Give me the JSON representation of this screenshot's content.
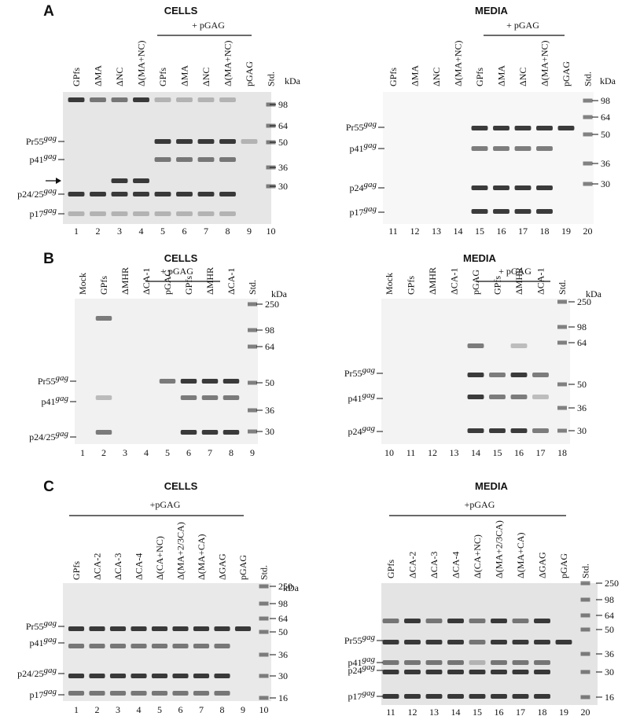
{
  "panels": [
    {
      "letter": "A",
      "cells": {
        "title": "CELLS",
        "treatment": "+ pGAG",
        "lanes": [
          "GPfs",
          "ΔMA",
          "ΔNC",
          "Δ(MA+NC)",
          "GPfs",
          "ΔMA",
          "ΔNC",
          "Δ(MA+NC)",
          "pGAG",
          "Std."
        ],
        "lane_numbers": [
          1,
          2,
          3,
          4,
          5,
          6,
          7,
          8,
          9,
          10
        ],
        "bands": [
          {
            "name": "Pr55",
            "sup": "gag"
          },
          {
            "name": "p41",
            "sup": "gag"
          },
          {
            "name": "p24/25",
            "sup": "gag"
          },
          {
            "name": "p17",
            "sup": "gag"
          }
        ],
        "markers": [
          98,
          64,
          50,
          36,
          30
        ],
        "unit": "kDa"
      },
      "media": {
        "title": "MEDIA",
        "treatment": "+ pGAG",
        "lanes": [
          "GPfs",
          "ΔMA",
          "ΔNC",
          "Δ(MA+NC)",
          "GPfs",
          "ΔMA",
          "ΔNC",
          "Δ(MA+NC)",
          "pGAG",
          "Std."
        ],
        "lane_numbers": [
          11,
          12,
          13,
          14,
          15,
          16,
          17,
          18,
          19,
          20
        ],
        "bands": [
          {
            "name": "Pr55",
            "sup": "gag"
          },
          {
            "name": "p41",
            "sup": "gag"
          },
          {
            "name": "p24",
            "sup": "gag"
          },
          {
            "name": "p17",
            "sup": "gag"
          }
        ],
        "markers": [
          98,
          64,
          50,
          36,
          30
        ],
        "unit": "kDa"
      }
    },
    {
      "letter": "B",
      "cells": {
        "title": "CELLS",
        "treatment": "+ pGAG",
        "lanes": [
          "Mock",
          "GPfs",
          "ΔMHR",
          "ΔCA-1",
          "pGAG",
          "GPfs",
          "ΔMHR",
          "ΔCA-1",
          "Std."
        ],
        "lane_numbers": [
          1,
          2,
          3,
          4,
          5,
          6,
          7,
          8,
          9
        ],
        "bands": [
          {
            "name": "Pr55",
            "sup": "gag"
          },
          {
            "name": "p41",
            "sup": "gag"
          },
          {
            "name": "p24/25",
            "sup": "gag"
          }
        ],
        "markers": [
          250,
          98,
          64,
          50,
          36,
          30
        ],
        "unit": "kDa"
      },
      "media": {
        "title": "MEDIA",
        "treatment": "+ pGAG",
        "lanes": [
          "Mock",
          "GPfs",
          "ΔMHR",
          "ΔCA-1",
          "pGAG",
          "GPfs",
          "ΔMHR",
          "ΔCA-1",
          "Std."
        ],
        "lane_numbers": [
          10,
          11,
          12,
          13,
          14,
          15,
          16,
          17,
          18
        ],
        "bands": [
          {
            "name": "Pr55",
            "sup": "gag"
          },
          {
            "name": "p41",
            "sup": "gag"
          },
          {
            "name": "p24",
            "sup": "gag"
          }
        ],
        "markers": [
          250,
          98,
          64,
          50,
          36,
          30
        ],
        "unit": "kDa"
      }
    },
    {
      "letter": "C",
      "cells": {
        "title": "CELLS",
        "treatment": "+pGAG",
        "lanes": [
          "GPfs",
          "ΔCA-2",
          "ΔCA-3",
          "ΔCA-4",
          "Δ(CA+NC)",
          "Δ(MA+2/3CA)",
          "Δ(MA+CA)",
          "ΔGAG",
          "pGAG",
          "Std."
        ],
        "lane_numbers": [
          1,
          2,
          3,
          4,
          5,
          6,
          7,
          8,
          9,
          10
        ],
        "bands": [
          {
            "name": "Pr55",
            "sup": "gag"
          },
          {
            "name": "p41",
            "sup": "gag"
          },
          {
            "name": "p24/25",
            "sup": "gag"
          },
          {
            "name": "p17",
            "sup": "gag"
          }
        ],
        "markers": [
          250,
          98,
          64,
          50,
          36,
          30,
          16
        ],
        "unit": "kDa"
      },
      "media": {
        "title": "MEDIA",
        "treatment": "+pGAG",
        "lanes": [
          "GPfs",
          "ΔCA-2",
          "ΔCA-3",
          "ΔCA-4",
          "Δ(CA+NC)",
          "Δ(MA+2/3CA)",
          "Δ(MA+CA)",
          "ΔGAG",
          "pGAG",
          "Std."
        ],
        "lane_numbers": [
          11,
          12,
          13,
          14,
          15,
          16,
          17,
          18,
          19,
          20
        ],
        "bands": [
          {
            "name": "Pr55",
            "sup": "gag"
          },
          {
            "name": "p41",
            "sup": "gag"
          },
          {
            "name": "p24",
            "sup": "gag"
          },
          {
            "name": "p17",
            "sup": "gag"
          }
        ],
        "markers": [
          250,
          98,
          64,
          50,
          36,
          30,
          16
        ]
      }
    }
  ]
}
